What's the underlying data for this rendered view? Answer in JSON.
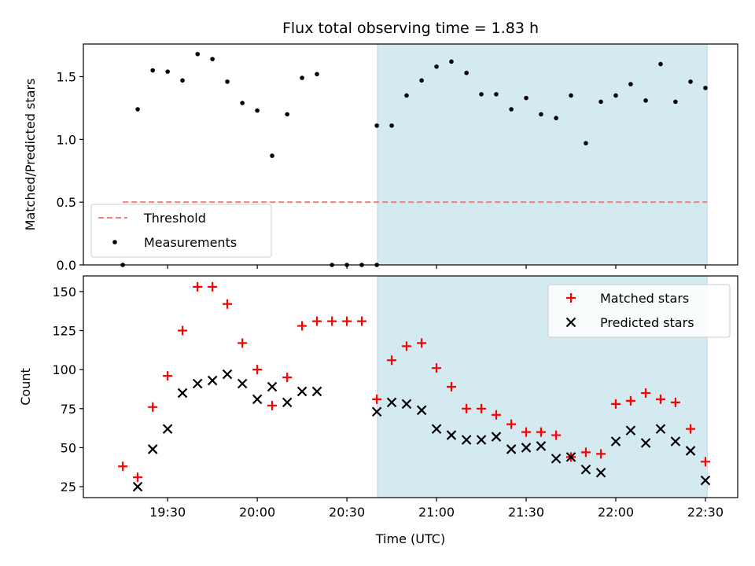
{
  "chart_data": {
    "title": "Flux total observing time = 1.83 h",
    "xlabel": "Time (UTC)",
    "x_tick_labels": [
      "19:30",
      "20:00",
      "20:30",
      "21:00",
      "21:30",
      "22:00",
      "22:30"
    ],
    "x_tick_hours": [
      19.5,
      20.0,
      20.5,
      21.0,
      21.5,
      22.0,
      22.5
    ],
    "x_range_hours": [
      19.03,
      22.68
    ],
    "shaded_region_hours": [
      20.67,
      22.51
    ],
    "shaded_color": "#d4eaf1",
    "panels": [
      {
        "type": "scatter",
        "ylabel": "Matched/Predicted stars",
        "ylim": [
          0,
          1.76
        ],
        "y_ticks": [
          0.0,
          0.5,
          1.0,
          1.5
        ],
        "y_tick_labels": [
          "0.0",
          "0.5",
          "1.0",
          "1.5"
        ],
        "threshold": {
          "name": "Threshold",
          "value": 0.5,
          "color": "#f08080",
          "x_range_hours": [
            19.25,
            22.51
          ]
        },
        "legend": {
          "position": "lower-left",
          "entries": [
            "Threshold",
            "Measurements"
          ]
        },
        "series": [
          {
            "name": "Measurements",
            "marker": "dot",
            "color": "#000000",
            "x_hours": [
              19.25,
              19.333,
              19.417,
              19.5,
              19.583,
              19.667,
              19.75,
              19.833,
              19.917,
              20.0,
              20.083,
              20.167,
              20.25,
              20.333,
              20.583,
              20.667,
              20.75,
              20.833,
              20.917,
              21.0,
              21.083,
              21.167,
              21.25,
              21.333,
              21.417,
              21.5,
              21.583,
              21.667,
              21.75,
              21.833,
              21.917,
              22.0,
              22.083,
              22.167,
              22.25,
              22.333,
              22.417,
              22.5,
              20.417,
              20.5,
              20.667
            ],
            "y": [
              0.0,
              1.24,
              1.55,
              1.54,
              1.47,
              1.68,
              1.64,
              1.46,
              1.29,
              1.23,
              0.87,
              1.2,
              1.49,
              1.52,
              0.0,
              0.0,
              1.11,
              1.35,
              1.47,
              1.58,
              1.62,
              1.53,
              1.36,
              1.36,
              1.24,
              1.33,
              1.2,
              1.17,
              1.35,
              0.97,
              1.3,
              1.35,
              1.44,
              1.31,
              1.6,
              1.3,
              1.46,
              1.41,
              0.0,
              0.0,
              1.11
            ]
          }
        ]
      },
      {
        "type": "scatter",
        "ylabel": "Count",
        "ylim": [
          18,
          160
        ],
        "y_ticks": [
          25,
          50,
          75,
          100,
          125,
          150
        ],
        "y_tick_labels": [
          "25",
          "50",
          "75",
          "100",
          "125",
          "150"
        ],
        "legend": {
          "position": "top-right",
          "entries": [
            "Matched stars",
            "Predicted stars"
          ]
        },
        "series": [
          {
            "name": "Matched stars",
            "marker": "plus",
            "color": "#ff0000",
            "x_hours": [
              19.25,
              19.333,
              19.417,
              19.5,
              19.583,
              19.667,
              19.75,
              19.833,
              19.917,
              20.0,
              20.083,
              20.167,
              20.25,
              20.333,
              20.417,
              20.5,
              20.583,
              20.667,
              20.75,
              20.833,
              20.917,
              21.0,
              21.083,
              21.167,
              21.25,
              21.333,
              21.417,
              21.5,
              21.583,
              21.667,
              21.75,
              21.833,
              21.917,
              22.0,
              22.083,
              22.167,
              22.25,
              22.333,
              22.417,
              22.5
            ],
            "y": [
              38,
              31,
              76,
              96,
              125,
              153,
              153,
              142,
              117,
              100,
              77,
              95,
              128,
              131,
              131,
              131,
              131,
              81,
              106,
              115,
              117,
              101,
              89,
              75,
              75,
              71,
              65,
              60,
              60,
              58,
              44,
              47,
              46,
              78,
              80,
              85,
              81,
              79,
              62,
              41
            ]
          },
          {
            "name": "Predicted stars",
            "marker": "cross",
            "color": "#000000",
            "x_hours": [
              19.333,
              19.417,
              19.5,
              19.583,
              19.667,
              19.75,
              19.833,
              19.917,
              20.0,
              20.083,
              20.167,
              20.25,
              20.333,
              20.667,
              20.75,
              20.833,
              20.917,
              21.0,
              21.083,
              21.167,
              21.25,
              21.333,
              21.417,
              21.5,
              21.583,
              21.667,
              21.75,
              21.833,
              21.917,
              22.0,
              22.083,
              22.167,
              22.25,
              22.333,
              22.417,
              22.5
            ],
            "y": [
              25,
              49,
              62,
              85,
              91,
              93,
              97,
              91,
              81,
              89,
              79,
              86,
              86,
              73,
              79,
              78,
              74,
              62,
              58,
              55,
              55,
              57,
              49,
              50,
              51,
              43,
              44,
              36,
              34,
              54,
              61,
              53,
              62,
              54,
              48,
              29
            ]
          }
        ]
      }
    ]
  }
}
